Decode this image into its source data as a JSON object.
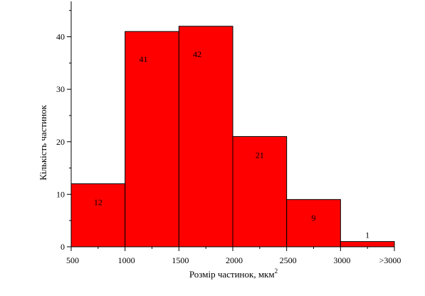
{
  "chart_data": {
    "type": "bar",
    "bin_edges": [
      500,
      1000,
      1500,
      2000,
      2500,
      3000,
      3500
    ],
    "x_tick_labels": [
      "500",
      "1000",
      "1500",
      "2000",
      "2500",
      "3000",
      ">3000"
    ],
    "values": [
      12,
      41,
      42,
      21,
      9,
      1
    ],
    "data_labels": [
      "12",
      "41",
      "42",
      "21",
      "9",
      "1"
    ],
    "xlabel": "Розмір частинок, мкм",
    "xlabel_superscript": "2",
    "ylabel": "Кількість частинок",
    "xlim": [
      500,
      3500
    ],
    "ylim": [
      0,
      47
    ],
    "y_ticks": [
      0,
      10,
      20,
      30,
      40
    ],
    "y_minor_step": 5,
    "grid": false,
    "bar_color": "#ff0000",
    "edge_color": "#000000"
  }
}
